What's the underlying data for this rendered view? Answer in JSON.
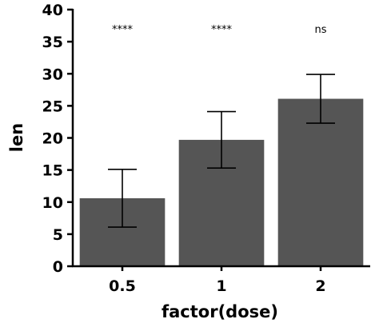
{
  "chart_data": {
    "type": "bar",
    "categories": [
      "0.5",
      "1",
      "2"
    ],
    "values": [
      10.6,
      19.7,
      26.1
    ],
    "error_low": [
      6.1,
      15.3,
      22.3
    ],
    "error_high": [
      15.1,
      24.1,
      29.9
    ],
    "significance": [
      "****",
      "****",
      "ns"
    ],
    "xlabel": "factor(dose)",
    "ylabel": "len",
    "ylim": [
      0,
      40
    ],
    "yticks": [
      0,
      5,
      10,
      15,
      20,
      25,
      30,
      35,
      40
    ],
    "grid": false,
    "legend": "none",
    "colors": {
      "bar": "#555555",
      "axis": "#000000",
      "error_bar": "#000000"
    }
  }
}
